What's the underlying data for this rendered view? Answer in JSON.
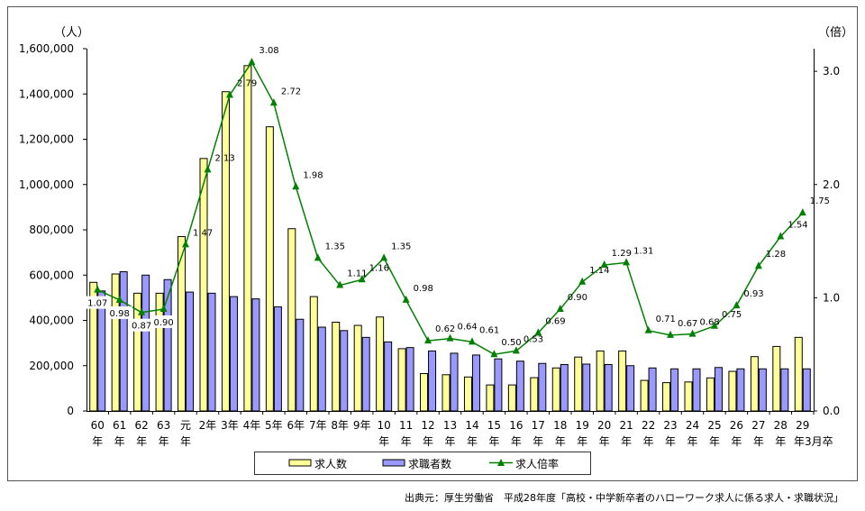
{
  "chart_data": {
    "type": "bar",
    "title": "",
    "ylabel_left": "（人）",
    "ylabel_right": "（倍）",
    "ylim_left": [
      0,
      1600000
    ],
    "ylim_right": [
      0,
      3.2
    ],
    "left_ticks": [
      "0",
      "200,000",
      "400,000",
      "600,000",
      "800,000",
      "1,000,000",
      "1,200,000",
      "1,400,000",
      "1,600,000"
    ],
    "left_tick_values": [
      0,
      200000,
      400000,
      600000,
      800000,
      1000000,
      1200000,
      1400000,
      1600000
    ],
    "right_ticks": [
      "0.0",
      "1.0",
      "2.0",
      "3.0"
    ],
    "right_tick_values": [
      0,
      1,
      2,
      3
    ],
    "categories": [
      "60\n年",
      "61\n年",
      "62\n年",
      "63\n年",
      "元\n年",
      "2年",
      "3年",
      "4年",
      "5年",
      "6年",
      "7年",
      "8年",
      "9年",
      "10\n年",
      "11\n年",
      "12\n年",
      "13\n年",
      "14\n年",
      "15\n年",
      "16\n年",
      "17\n年",
      "18\n年",
      "19\n年",
      "20\n年",
      "21\n年",
      "22\n年",
      "23\n年",
      "24\n年",
      "25\n年",
      "26\n年",
      "27\n年",
      "28\n年",
      "29\n年3月卒"
    ],
    "series": [
      {
        "name": "求人数",
        "type": "bar",
        "axis": "left",
        "color": "#FFFF99",
        "values": [
          568000,
          605000,
          520000,
          520000,
          770000,
          1115000,
          1410000,
          1525000,
          1255000,
          805000,
          505000,
          392000,
          378000,
          415000,
          275000,
          165000,
          160000,
          150000,
          115000,
          115000,
          147000,
          190000,
          238000,
          265000,
          265000,
          135000,
          125000,
          128000,
          146000,
          175000,
          240000,
          285000,
          325000
        ]
      },
      {
        "name": "求職者数",
        "type": "bar",
        "axis": "left",
        "color": "#9999FF",
        "values": [
          530000,
          615000,
          600000,
          580000,
          525000,
          520000,
          505000,
          495000,
          460000,
          405000,
          370000,
          355000,
          325000,
          305000,
          280000,
          265000,
          255000,
          247000,
          230000,
          220000,
          210000,
          205000,
          207000,
          205000,
          200000,
          190000,
          186000,
          186000,
          192000,
          186000,
          186000,
          186000,
          186000
        ]
      },
      {
        "name": "求人倍率",
        "type": "line",
        "axis": "right",
        "color": "#008000",
        "values": [
          1.07,
          0.98,
          0.87,
          0.9,
          1.47,
          2.13,
          2.79,
          3.08,
          2.72,
          1.98,
          1.35,
          1.11,
          1.16,
          1.35,
          0.98,
          0.62,
          0.64,
          0.61,
          0.5,
          0.53,
          0.69,
          0.9,
          1.14,
          1.29,
          1.31,
          0.71,
          0.67,
          0.68,
          0.75,
          0.93,
          1.28,
          1.54,
          1.75
        ],
        "labels": [
          "1.07",
          "0.98",
          "0.87",
          "0.90",
          "1.47",
          "2.13",
          "2.79",
          "3.08",
          "2.72",
          "1.98",
          "1.35",
          "1.11",
          "1.16",
          "1.35",
          "0.98",
          "0.62",
          "0.64",
          "0.61",
          "0.50",
          "0.53",
          "0.69",
          "0.90",
          "1.14",
          "1.29",
          "1.31",
          "0.71",
          "0.67",
          "0.68",
          "0.75",
          "0.93",
          "1.28",
          "1.54",
          "1.75"
        ]
      }
    ],
    "legend": [
      "求人数",
      "求職者数",
      "求人倍率"
    ],
    "legend_position": "bottom",
    "grid": false
  },
  "source": "出典元：厚生労働省　平成28年度「高校・中学新卒者のハローワーク求人に係る求人・求職状況」"
}
